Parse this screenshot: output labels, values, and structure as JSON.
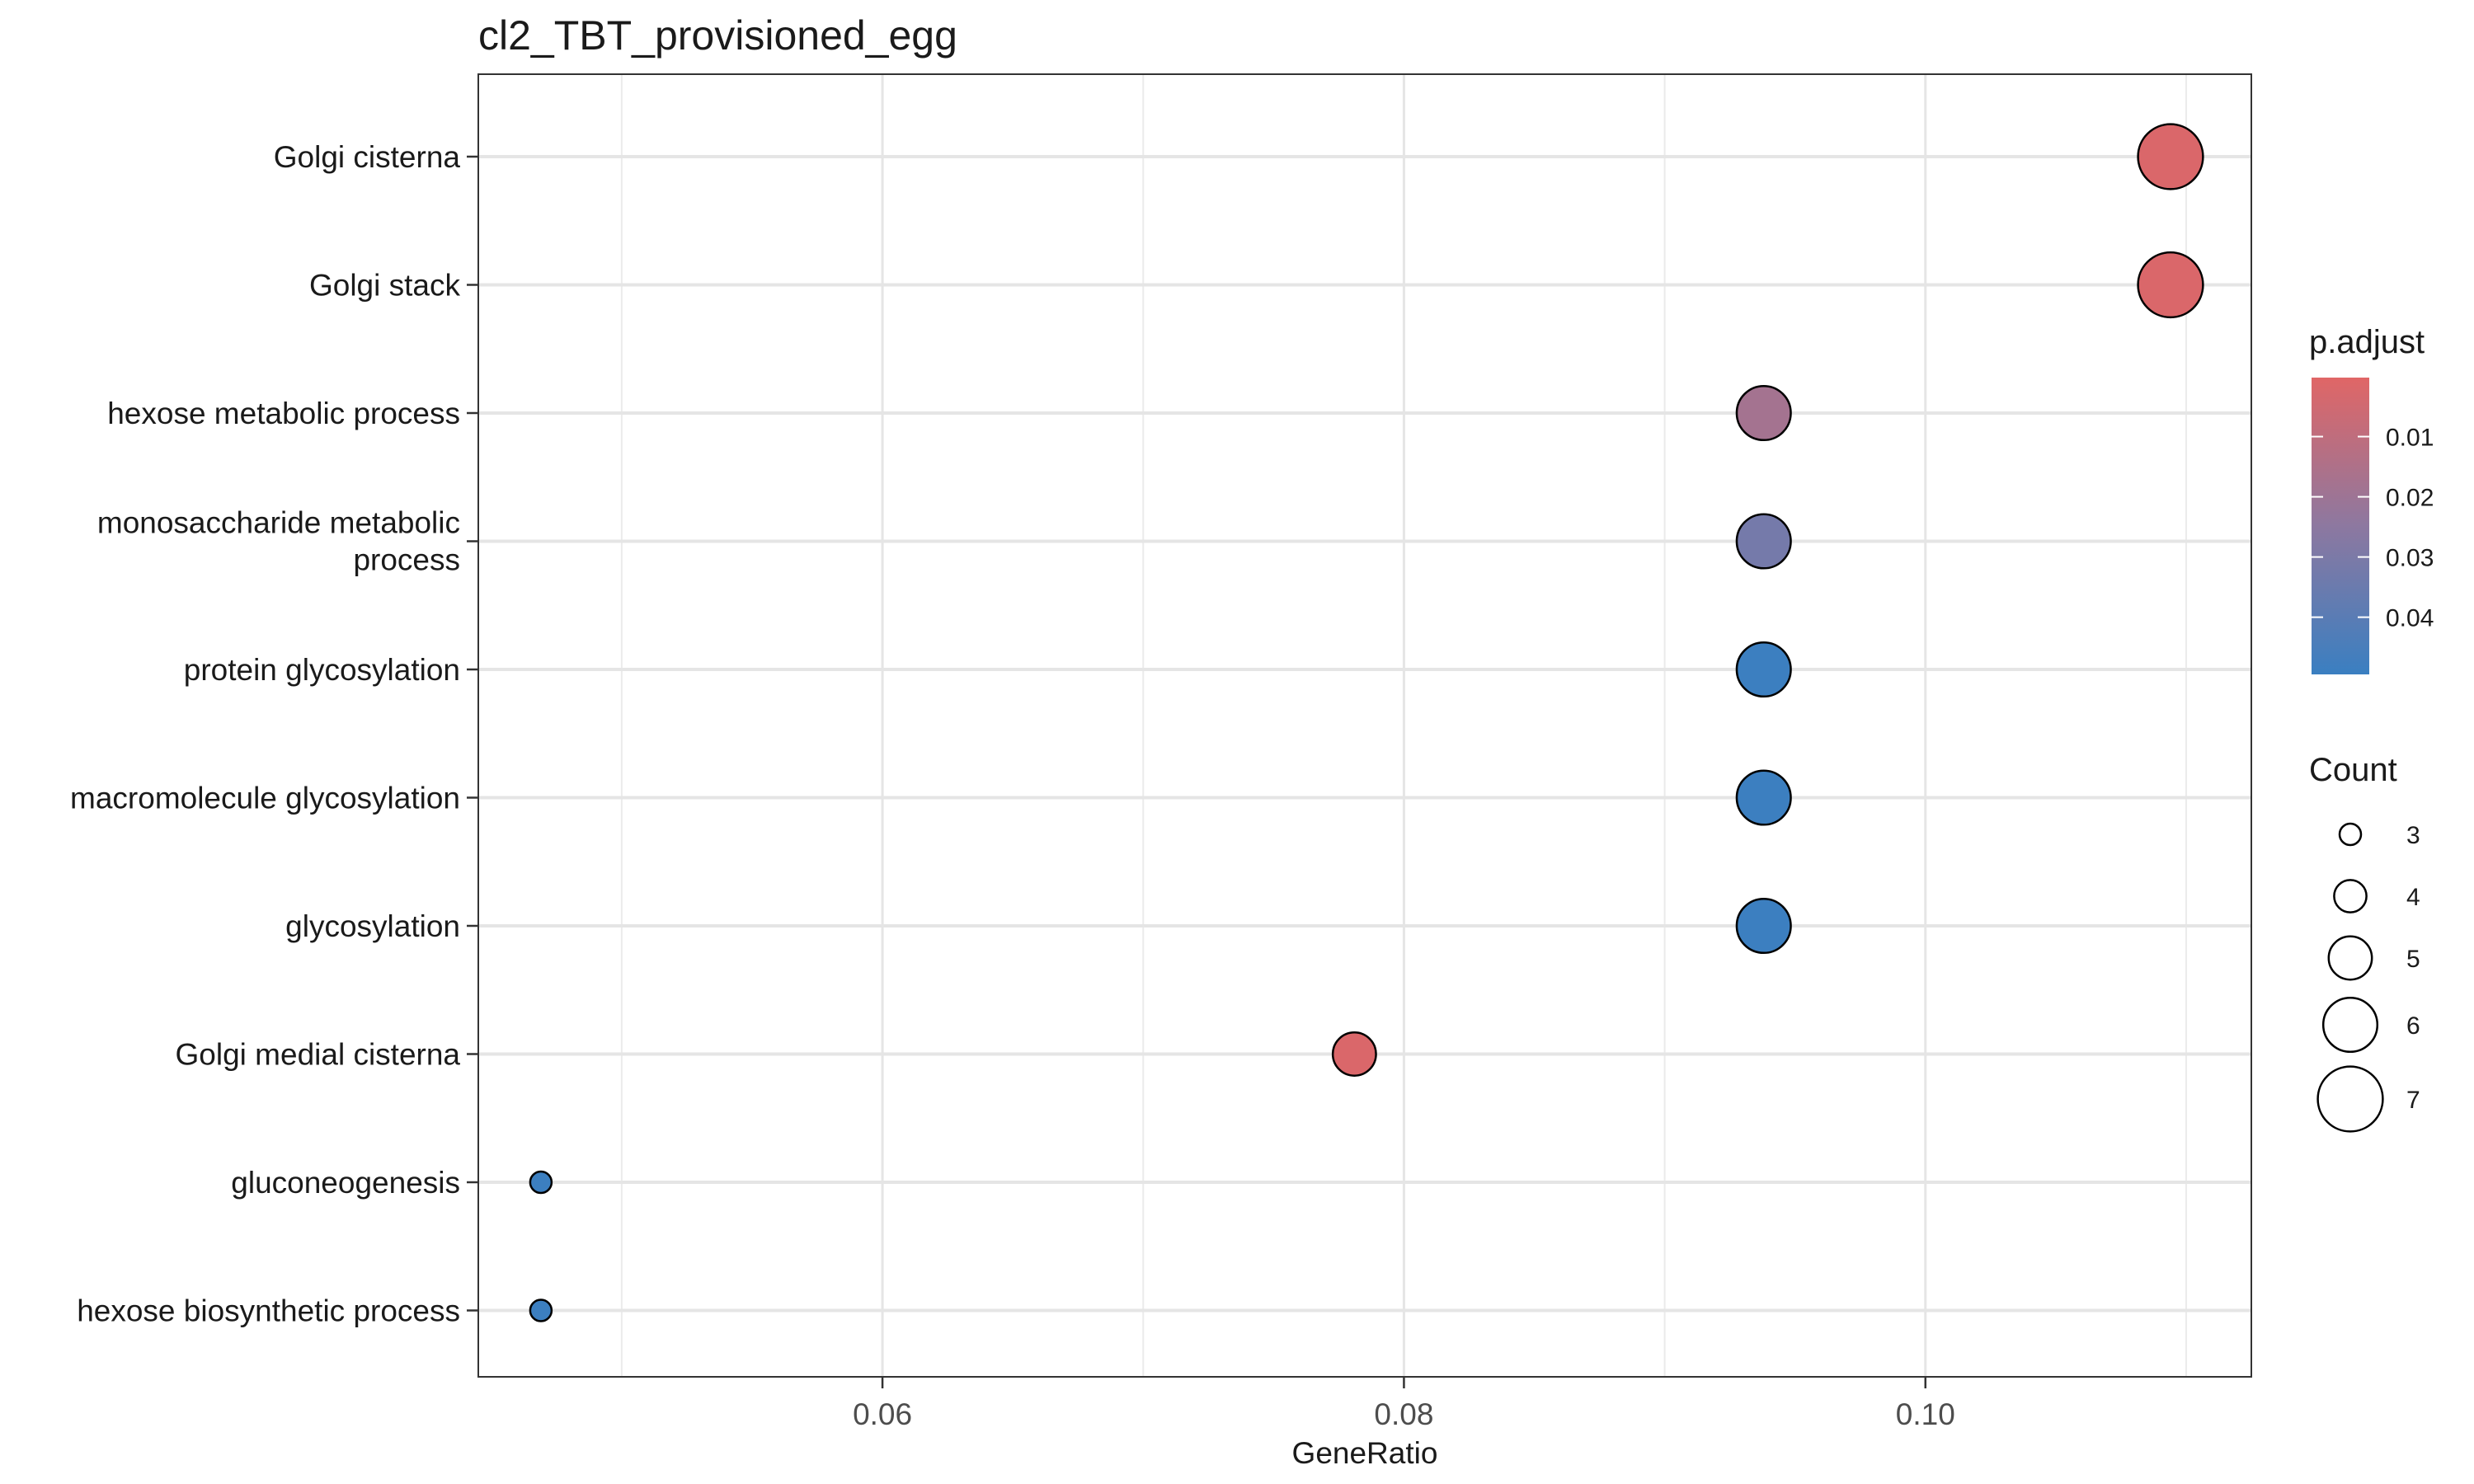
{
  "chart_data": {
    "type": "scatter",
    "title": "cl2_TBT_provisioned_egg",
    "xlabel": "GeneRatio",
    "ylabel": "",
    "xlim": [
      0.0445,
      0.1125
    ],
    "x_ticks": [
      0.06,
      0.08,
      0.1
    ],
    "x_tick_labels": [
      "0.06",
      "0.08",
      "0.10"
    ],
    "grid": true,
    "categories": [
      "Golgi cisterna",
      "Golgi stack",
      "hexose metabolic process",
      "monosaccharide metabolic process",
      "protein glycosylation",
      "macromolecule glycosylation",
      "glycosylation",
      "Golgi medial cisterna",
      "gluconeogenesis",
      "hexose biosynthetic process"
    ],
    "category_lines": [
      [
        "Golgi cisterna"
      ],
      [
        "Golgi stack"
      ],
      [
        "hexose metabolic process"
      ],
      [
        "monosaccharide metabolic",
        "process"
      ],
      [
        "protein glycosylation"
      ],
      [
        "macromolecule glycosylation"
      ],
      [
        "glycosylation"
      ],
      [
        "Golgi medial cisterna"
      ],
      [
        "gluconeogenesis"
      ],
      [
        "hexose biosynthetic process"
      ]
    ],
    "points": [
      {
        "category": "Golgi cisterna",
        "gene_ratio": 0.1094,
        "count": 7,
        "p_adjust": 0.002
      },
      {
        "category": "Golgi stack",
        "gene_ratio": 0.1094,
        "count": 7,
        "p_adjust": 0.002
      },
      {
        "category": "hexose metabolic process",
        "gene_ratio": 0.0938,
        "count": 6,
        "p_adjust": 0.018
      },
      {
        "category": "monosaccharide metabolic process",
        "gene_ratio": 0.0938,
        "count": 6,
        "p_adjust": 0.032
      },
      {
        "category": "protein glycosylation",
        "gene_ratio": 0.0938,
        "count": 6,
        "p_adjust": 0.049
      },
      {
        "category": "macromolecule glycosylation",
        "gene_ratio": 0.0938,
        "count": 6,
        "p_adjust": 0.049
      },
      {
        "category": "glycosylation",
        "gene_ratio": 0.0938,
        "count": 6,
        "p_adjust": 0.049
      },
      {
        "category": "Golgi medial cisterna",
        "gene_ratio": 0.0781,
        "count": 5,
        "p_adjust": 0.002
      },
      {
        "category": "gluconeogenesis",
        "gene_ratio": 0.0469,
        "count": 3,
        "p_adjust": 0.049
      },
      {
        "category": "hexose biosynthetic process",
        "gene_ratio": 0.0469,
        "count": 3,
        "p_adjust": 0.049
      }
    ],
    "color_legend": {
      "title": "p.adjust",
      "ticks": [
        0.01,
        0.02,
        0.03,
        0.04
      ],
      "tick_labels": [
        "0.01",
        "0.02",
        "0.03",
        "0.04"
      ],
      "range": [
        0.0002,
        0.0495
      ],
      "low_color": "#e06666",
      "high_color": "#3a7fc1"
    },
    "size_legend": {
      "title": "Count",
      "values": [
        3,
        4,
        5,
        6,
        7
      ],
      "labels": [
        "3",
        "4",
        "5",
        "6",
        "7"
      ]
    },
    "legend_position": "right"
  }
}
